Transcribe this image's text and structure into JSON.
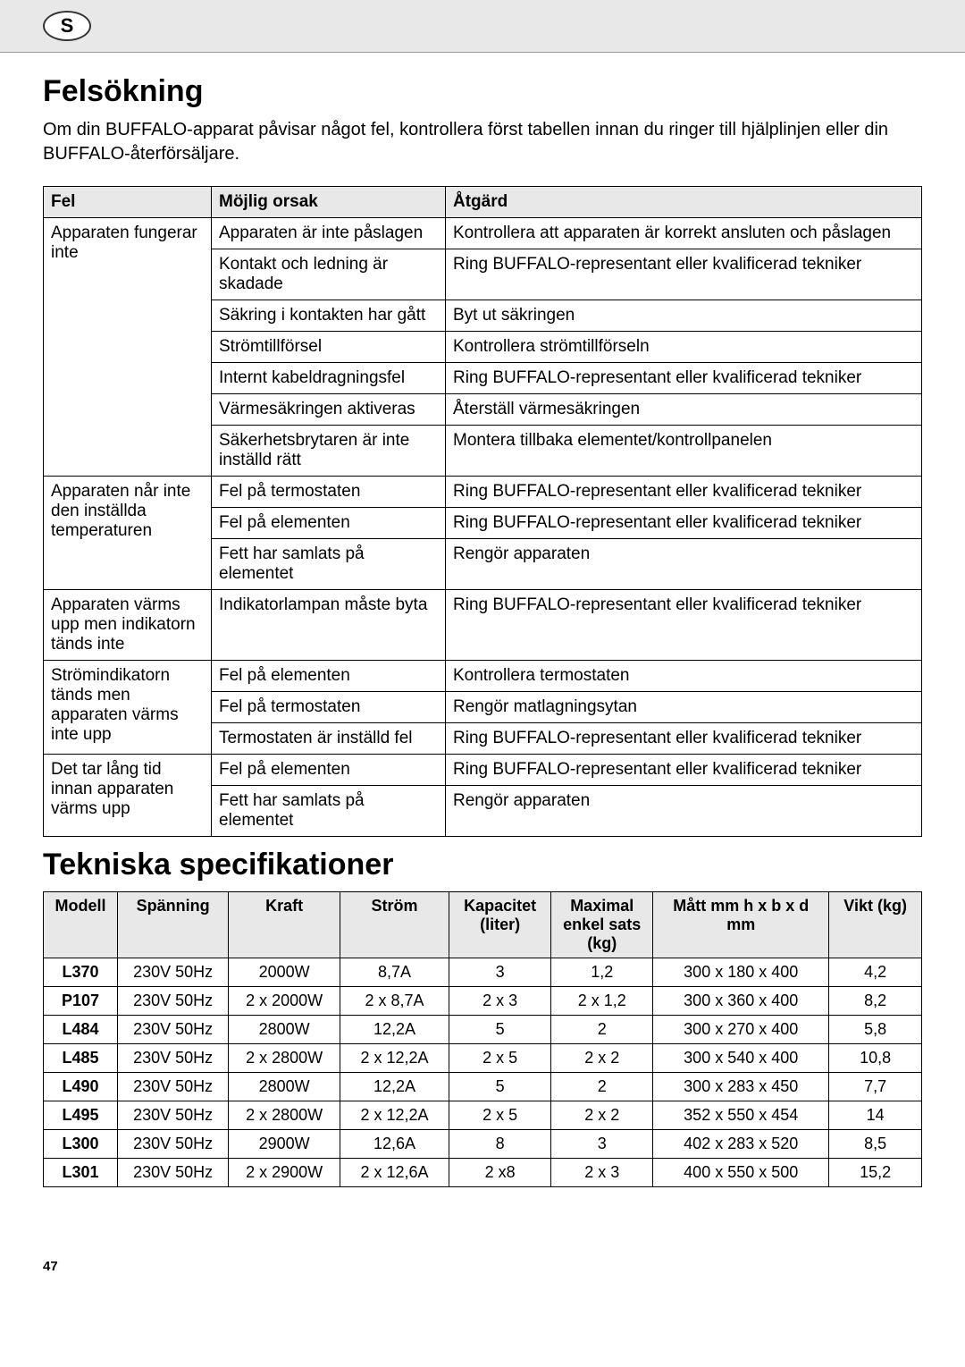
{
  "header_badge": "S",
  "page_number": "47",
  "troubleshooting": {
    "heading": "Felsökning",
    "intro": "Om din BUFFALO-apparat påvisar något fel, kontrollera först tabellen innan du ringer till hjälplinjen eller din BUFFALO-återförsäljare.",
    "columns": [
      "Fel",
      "Möjlig orsak",
      "Åtgärd"
    ],
    "groups": [
      {
        "fault": "Apparaten fungerar inte",
        "rows": [
          {
            "cause": "Apparaten är inte påslagen",
            "action": "Kontrollera att apparaten är korrekt ansluten och påslagen"
          },
          {
            "cause": "Kontakt och ledning är skadade",
            "action": "Ring BUFFALO-representant eller kvalificerad tekniker"
          },
          {
            "cause": "Säkring i kontakten har gått",
            "action": "Byt ut säkringen"
          },
          {
            "cause": "Strömtillförsel",
            "action": "Kontrollera strömtillförseln"
          },
          {
            "cause": "Internt kabeldragningsfel",
            "action": "Ring BUFFALO-representant eller kvalificerad tekniker"
          },
          {
            "cause": "Värmesäkringen aktiveras",
            "action": "Återställ värmesäkringen"
          },
          {
            "cause": "Säkerhetsbrytaren är inte inställd rätt",
            "action": "Montera tillbaka elementet/kontrollpanelen"
          }
        ]
      },
      {
        "fault": "Apparaten når inte den inställda temperaturen",
        "rows": [
          {
            "cause": "Fel på termostaten",
            "action": "Ring BUFFALO-representant eller kvalificerad tekniker"
          },
          {
            "cause": "Fel på elementen",
            "action": "Ring BUFFALO-representant eller kvalificerad tekniker"
          },
          {
            "cause": "Fett har samlats på elementet",
            "action": "Rengör apparaten"
          }
        ]
      },
      {
        "fault": "Apparaten värms upp men indikatorn tänds inte",
        "rows": [
          {
            "cause": "Indikatorlampan måste byta",
            "action": "Ring BUFFALO-representant eller kvalificerad tekniker"
          }
        ]
      },
      {
        "fault": "Strömindikatorn tänds men apparaten värms inte upp",
        "rows": [
          {
            "cause": "Fel på elementen",
            "action": "Kontrollera termostaten"
          },
          {
            "cause": "Fel på termostaten",
            "action": "Rengör matlagningsytan"
          },
          {
            "cause": "Termostaten är inställd fel",
            "action": "Ring BUFFALO-representant eller kvalificerad tekniker"
          }
        ]
      },
      {
        "fault": "Det tar lång tid innan apparaten värms upp",
        "rows": [
          {
            "cause": "Fel på elementen",
            "action": "Ring BUFFALO-representant eller kvalificerad tekniker"
          },
          {
            "cause": "Fett har samlats på elementet",
            "action": "Rengör apparaten"
          }
        ]
      }
    ]
  },
  "specs": {
    "heading": "Tekniska specifikationer",
    "columns": [
      "Modell",
      "Spänning",
      "Kraft",
      "Ström",
      "Kapacitet (liter)",
      "Maximal enkel sats (kg)",
      "Mått mm h x b x d mm",
      "Vikt (kg)"
    ],
    "column_widths": [
      "80px",
      "120px",
      "120px",
      "118px",
      "110px",
      "110px",
      "190px",
      "100px"
    ],
    "rows": [
      [
        "L370",
        "230V 50Hz",
        "2000W",
        "8,7A",
        "3",
        "1,2",
        "300 x 180 x 400",
        "4,2"
      ],
      [
        "P107",
        "230V 50Hz",
        "2 x 2000W",
        "2 x 8,7A",
        "2 x 3",
        "2 x 1,2",
        "300 x 360 x 400",
        "8,2"
      ],
      [
        "L484",
        "230V 50Hz",
        "2800W",
        "12,2A",
        "5",
        "2",
        "300 x 270 x 400",
        "5,8"
      ],
      [
        "L485",
        "230V 50Hz",
        "2 x 2800W",
        "2 x 12,2A",
        "2 x 5",
        "2 x 2",
        "300 x 540 x 400",
        "10,8"
      ],
      [
        "L490",
        "230V 50Hz",
        "2800W",
        "12,2A",
        "5",
        "2",
        "300 x 283 x 450",
        "7,7"
      ],
      [
        "L495",
        "230V 50Hz",
        "2 x 2800W",
        "2 x 12,2A",
        "2 x 5",
        "2 x 2",
        "352 x 550 x 454",
        "14"
      ],
      [
        "L300",
        "230V 50Hz",
        "2900W",
        "12,6A",
        "8",
        "3",
        "402 x 283 x 520",
        "8,5"
      ],
      [
        "L301",
        "230V 50Hz",
        "2 x 2900W",
        "2 x 12,6A",
        "2 x8",
        "2 x 3",
        "400 x 550 x 500",
        "15,2"
      ]
    ]
  }
}
